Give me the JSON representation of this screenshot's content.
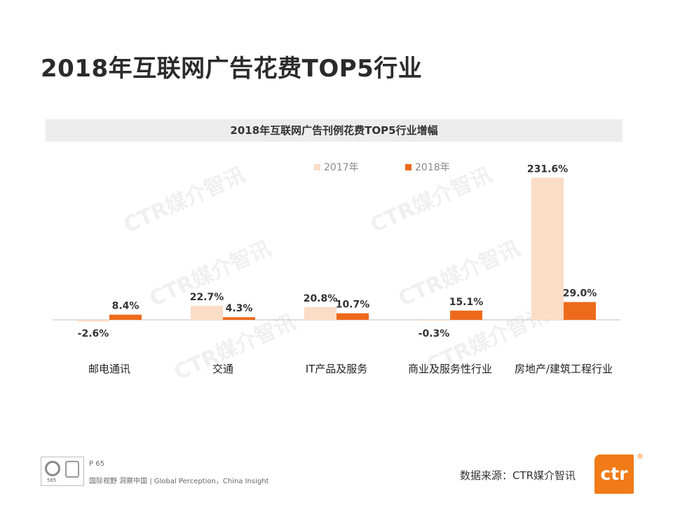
{
  "page": {
    "title": "2018年互联网广告花费TOP5行业",
    "page_number": "P 65",
    "tagline": "国际视野  洞察中国 |  Global Perception，China Insight",
    "source": "数据来源：CTR媒介智讯",
    "logo_text": "ctr",
    "logo_reg": "®",
    "cert_number": "565",
    "watermark_text": "CTR媒介智讯"
  },
  "colors": {
    "series_2017": "#fbdcc6",
    "series_2018": "#ee6a1b",
    "brand": "#f07b17",
    "axis": "#bfbfbf"
  },
  "chart_data": {
    "type": "bar",
    "title": "2018年互联网广告刊例花费TOP5行业增幅",
    "categories": [
      "邮电通讯",
      "交通",
      "IT产品及服务",
      "商业及服务性行业",
      "房地产/建筑工程行业"
    ],
    "series": [
      {
        "name": "2017年",
        "values": [
          -2.6,
          22.7,
          20.8,
          -0.3,
          231.6
        ],
        "labels": [
          "-2.6%",
          "22.7%",
          "20.8%",
          "-0.3%",
          "231.6%"
        ]
      },
      {
        "name": "2018年",
        "values": [
          8.4,
          4.3,
          10.7,
          15.1,
          29.0
        ],
        "labels": [
          "8.4%",
          "4.3%",
          "10.7%",
          "15.1%",
          "29.0%"
        ]
      }
    ],
    "unit": "%",
    "ylim": [
      -20,
      240
    ],
    "legend": "top-center",
    "grid": false
  }
}
